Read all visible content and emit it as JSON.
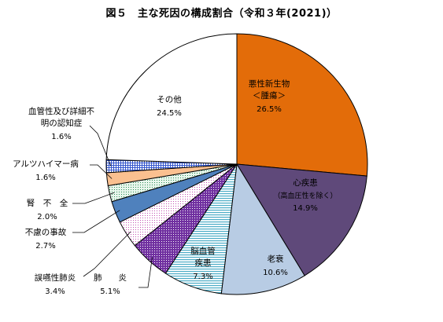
{
  "chart_data": {
    "type": "pie",
    "title": "図５　主な死因の構成割合（令和３年(2021)）",
    "start_angle_deg": 0,
    "direction": "clockwise",
    "slices": [
      {
        "label_lines": [
          "悪性新生物",
          "＜腫瘍＞"
        ],
        "pct_text": "26.5%",
        "value": 26.5,
        "fill": "#E36C09",
        "pattern": "solid"
      },
      {
        "label_lines": [
          "心疾患"
        ],
        "sub": "（高血圧性を除く）",
        "pct_text": "14.9%",
        "value": 14.9,
        "fill": "#5F497A",
        "pattern": "solid"
      },
      {
        "label_lines": [
          "老衰"
        ],
        "pct_text": "10.6%",
        "value": 10.6,
        "fill": "#B8CCE4",
        "pattern": "solid"
      },
      {
        "label_lines": [
          "脳血管",
          "疾患"
        ],
        "pct_text": "7.3%",
        "value": 7.3,
        "fill": "#4BACC6",
        "pattern": "hlines"
      },
      {
        "label_lines": [
          "肺　　炎"
        ],
        "pct_text": "5.1%",
        "value": 5.1,
        "fill": "#7030A0",
        "pattern": "dots-dark"
      },
      {
        "label_lines": [
          "誤嚥性肺炎"
        ],
        "pct_text": "3.4%",
        "value": 3.4,
        "fill": "#D070C0",
        "pattern": "dots-light"
      },
      {
        "label_lines": [
          "不慮の事故"
        ],
        "pct_text": "2.7%",
        "value": 2.7,
        "fill": "#4F81BD",
        "pattern": "solid"
      },
      {
        "label_lines": [
          "腎　不　全"
        ],
        "pct_text": "2.0%",
        "value": 2.0,
        "fill": "#9BD7B0",
        "pattern": "dots-green"
      },
      {
        "label_lines": [
          "アルツハイマー病"
        ],
        "pct_text": "1.6%",
        "value": 1.6,
        "fill": "#FAC090",
        "pattern": "solid"
      },
      {
        "label_lines": [
          "血管性及び詳細不",
          "明の認知症"
        ],
        "pct_text": "1.6%",
        "value": 1.6,
        "fill": "#3355CC",
        "pattern": "grid"
      },
      {
        "label_lines": [
          "その他"
        ],
        "pct_text": "24.5%",
        "value": 24.5,
        "fill": "#FFFFFF",
        "pattern": "solid"
      }
    ]
  }
}
